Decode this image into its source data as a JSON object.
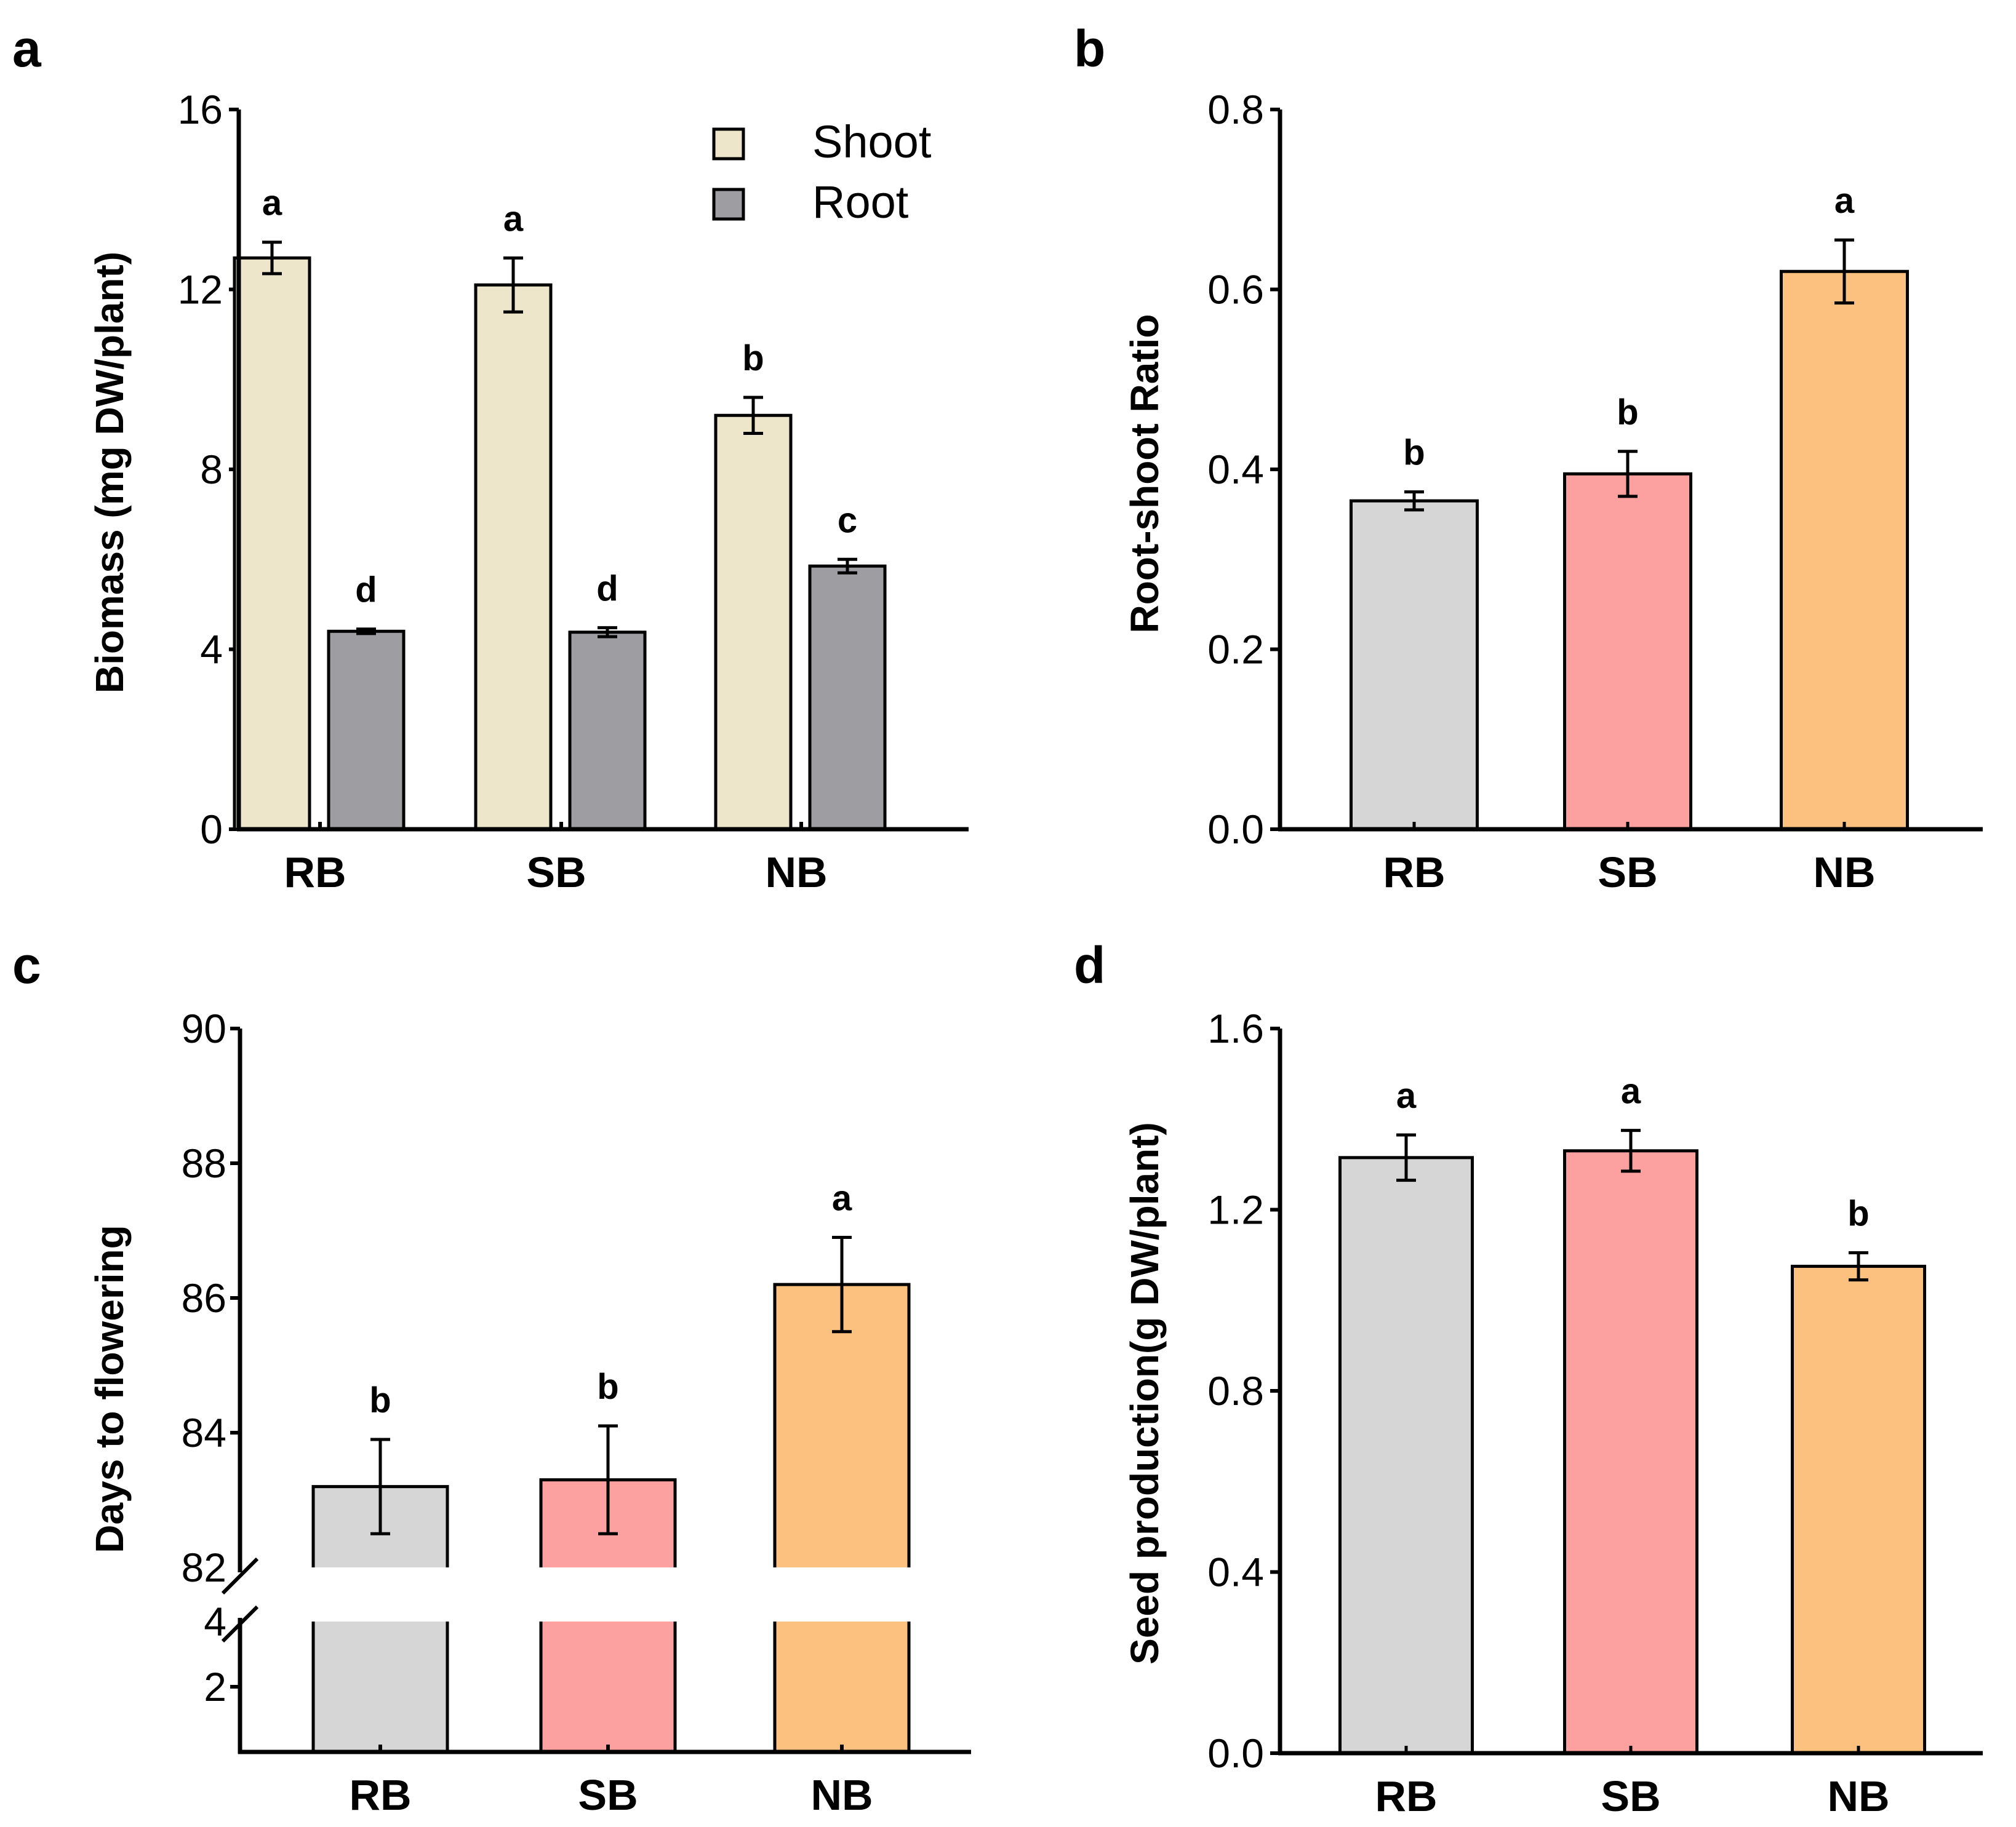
{
  "chart_data": [
    {
      "panel": "a",
      "type": "bar",
      "categories": [
        "RB",
        "SB",
        "NB"
      ],
      "ylabel": "Biomass (mg DW/plant)",
      "ylim": [
        0,
        16
      ],
      "yticks": [
        0,
        4,
        8,
        12,
        16
      ],
      "legend": {
        "placement": "top-right",
        "entries": [
          "Shoot",
          "Root"
        ]
      },
      "series": [
        {
          "name": "Shoot",
          "color": "#EDE6CA",
          "values": [
            12.7,
            12.1,
            9.2
          ],
          "errors": [
            0.35,
            0.6,
            0.4
          ],
          "letters": [
            "a",
            "a",
            "b"
          ]
        },
        {
          "name": "Root",
          "color": "#9E9EA2",
          "values": [
            4.4,
            4.38,
            5.85
          ],
          "errors": [
            0.05,
            0.1,
            0.15
          ],
          "letters": [
            "d",
            "d",
            "c"
          ]
        }
      ]
    },
    {
      "panel": "b",
      "type": "bar",
      "categories": [
        "RB",
        "SB",
        "NB"
      ],
      "ylabel": "Root-shoot Ratio",
      "ylim": [
        0,
        0.8
      ],
      "yticks": [
        "0.0",
        "0.2",
        "0.4",
        "0.6",
        "0.8"
      ],
      "colors": [
        "#D6D6D6",
        "#FCA1A0",
        "#FDC17F"
      ],
      "values": [
        0.365,
        0.395,
        0.62
      ],
      "errors": [
        0.01,
        0.025,
        0.035
      ],
      "letters": [
        "b",
        "b",
        "a"
      ]
    },
    {
      "panel": "c",
      "type": "bar",
      "categories": [
        "RB",
        "SB",
        "NB"
      ],
      "ylabel": "Days to flowering",
      "axis_break": {
        "lower": [
          0,
          4
        ],
        "upper": [
          82,
          90
        ]
      },
      "yticks_upper": [
        82,
        84,
        86,
        88,
        90
      ],
      "yticks_lower": [
        2,
        4
      ],
      "colors": [
        "#D6D6D6",
        "#FCA1A0",
        "#FDC17F"
      ],
      "values": [
        83.2,
        83.3,
        86.2
      ],
      "errors": [
        0.7,
        0.8,
        0.7
      ],
      "letters": [
        "b",
        "b",
        "a"
      ]
    },
    {
      "panel": "d",
      "type": "bar",
      "categories": [
        "RB",
        "SB",
        "NB"
      ],
      "ylabel": "Seed production(g DW/plant)",
      "ylim": [
        0,
        1.6
      ],
      "yticks": [
        "0.0",
        "0.4",
        "0.8",
        "1.2",
        "1.6"
      ],
      "colors": [
        "#D6D6D6",
        "#FCA1A0",
        "#FDC17F"
      ],
      "values": [
        1.315,
        1.33,
        1.075
      ],
      "errors": [
        0.05,
        0.045,
        0.03
      ],
      "letters": [
        "a",
        "a",
        "b"
      ]
    }
  ]
}
